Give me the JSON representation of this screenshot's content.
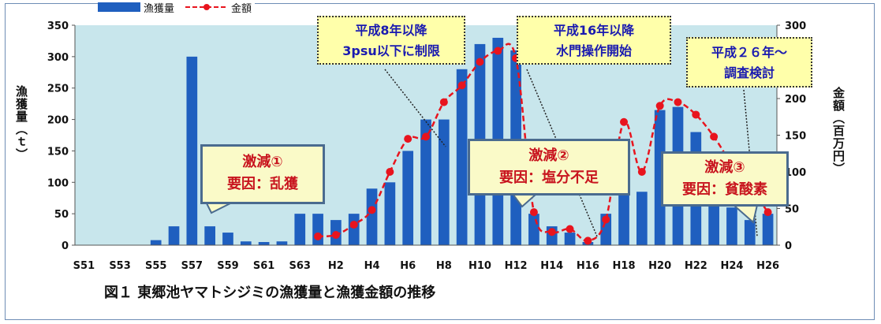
{
  "chart_data": {
    "type": "bar",
    "categories": [
      "S51",
      "S52",
      "S53",
      "S54",
      "S55",
      "S56",
      "S57",
      "S58",
      "S59",
      "S60",
      "S61",
      "S62",
      "S63",
      "H1",
      "H2",
      "H3",
      "H4",
      "H5",
      "H6",
      "H7",
      "H8",
      "H9",
      "H10",
      "H11",
      "H12",
      "H13",
      "H14",
      "H15",
      "H16",
      "H17",
      "H18",
      "H19",
      "H20",
      "H21",
      "H22",
      "H23",
      "H24",
      "H25",
      "H26"
    ],
    "x_tick_labels": [
      "S51",
      "S53",
      "S55",
      "S57",
      "S59",
      "S61",
      "S63",
      "H2",
      "H4",
      "H6",
      "H8",
      "H10",
      "H12",
      "H14",
      "H16",
      "H18",
      "H20",
      "H22",
      "H24",
      "H26"
    ],
    "series": [
      {
        "name": "漁獲量",
        "type": "bar",
        "axis": "left",
        "color": "#1f5fbf",
        "values": [
          0,
          0,
          0,
          0,
          8,
          30,
          300,
          30,
          20,
          6,
          5,
          6,
          50,
          50,
          40,
          50,
          90,
          100,
          150,
          200,
          200,
          280,
          320,
          330,
          310,
          50,
          30,
          20,
          5,
          50,
          165,
          85,
          215,
          220,
          180,
          120,
          60,
          40,
          50
        ]
      },
      {
        "name": "金額",
        "type": "line",
        "axis": "right",
        "color": "#e8141e",
        "values": [
          null,
          null,
          null,
          null,
          null,
          null,
          null,
          null,
          null,
          null,
          null,
          null,
          null,
          12,
          14,
          28,
          48,
          100,
          145,
          148,
          195,
          218,
          250,
          265,
          255,
          45,
          18,
          22,
          6,
          35,
          168,
          100,
          190,
          195,
          178,
          148,
          110,
          80,
          45
        ]
      }
    ],
    "y_left": {
      "label": "漁獲量（ｔ）",
      "ticks": [
        0,
        50,
        100,
        150,
        200,
        250,
        300,
        350
      ],
      "ylim": [
        0,
        350
      ]
    },
    "y_right": {
      "label": "金額（百万円）",
      "ticks": [
        0,
        50,
        100,
        150,
        200,
        250,
        300
      ],
      "ylim": [
        0,
        300
      ]
    },
    "legend_position": "top-left",
    "grid": false,
    "plot_background": "#c8e6ec",
    "annotations": {
      "note1": {
        "line1": "平成8年以降",
        "line2": "3psu以下に制限"
      },
      "note2": {
        "line1": "平成16年以降",
        "line2": "水門操作開始"
      },
      "note3": {
        "line1": "平成２６年～",
        "line2": "調査検討"
      },
      "call1": {
        "line1": "激減①",
        "line2": "要因：乱獲"
      },
      "call2": {
        "line1": "激減②",
        "line2": "要因：塩分不足"
      },
      "call3": {
        "line1": "激減③",
        "line2": "要因：貧酸素"
      }
    },
    "caption": "図１ 東郷池ヤマトシジミの漁獲量と漁獲金額の推移"
  }
}
